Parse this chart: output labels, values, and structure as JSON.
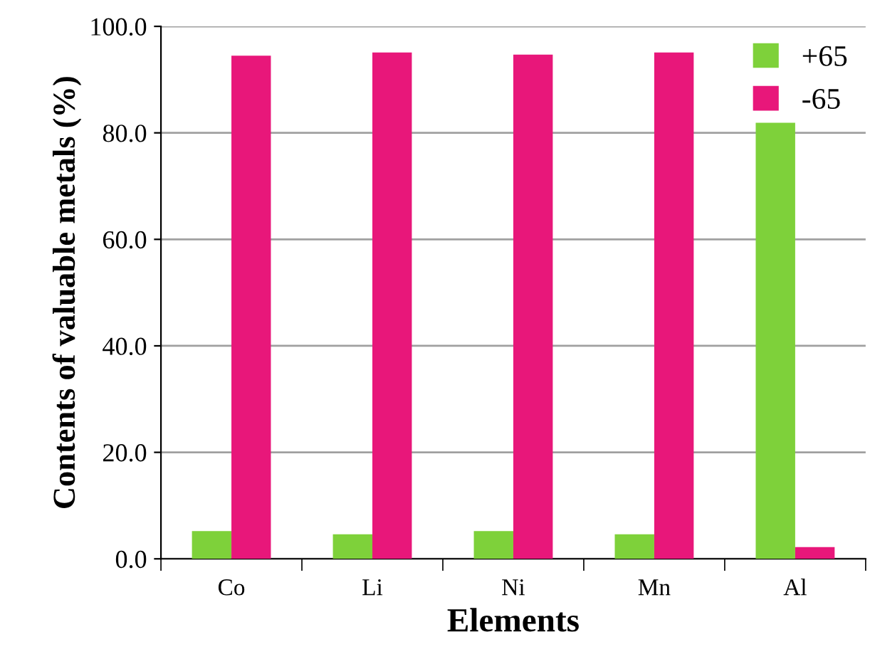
{
  "chart_data": {
    "type": "bar",
    "xlabel": "Elements",
    "ylabel": "Contents of valuable metals (%)",
    "categories": [
      "Co",
      "Li",
      "Ni",
      "Mn",
      "Al"
    ],
    "series": [
      {
        "name": "+65",
        "color": "#7ed13a",
        "values": [
          5.2,
          4.6,
          5.2,
          4.6,
          81.9
        ]
      },
      {
        "name": "-65",
        "color": "#e8177a",
        "values": [
          94.5,
          95.1,
          94.7,
          95.1,
          2.2
        ]
      }
    ],
    "ylim": [
      0,
      100
    ],
    "yticks": [
      {
        "value": 0,
        "label": "0.0"
      },
      {
        "value": 20,
        "label": "20.0"
      },
      {
        "value": 40,
        "label": "40.0"
      },
      {
        "value": 60,
        "label": "60.0"
      },
      {
        "value": 80,
        "label": "80.0"
      },
      {
        "value": 100,
        "label": "100.0"
      }
    ],
    "grid": "y",
    "legend": "top right"
  }
}
